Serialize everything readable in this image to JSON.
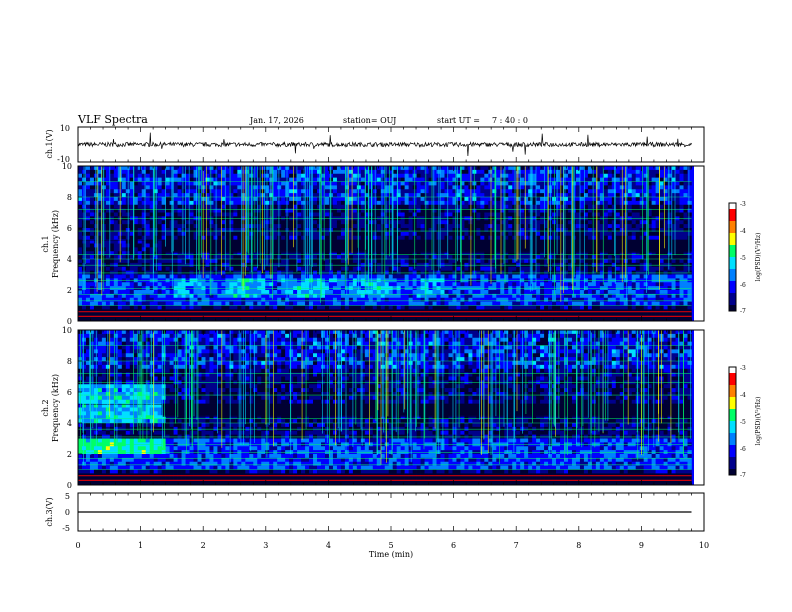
{
  "header": {
    "title": "VLF Spectra",
    "date": "Jan. 17, 2026",
    "station": "station= OUJ",
    "start_label": "start UT =",
    "start_time": "7 : 40 : 0"
  },
  "colors": {
    "spectrogram_scale": [
      "#000033",
      "#00008b",
      "#0000ff",
      "#0080ff",
      "#00e0ff",
      "#00ff66",
      "#ffff00",
      "#ff8000",
      "#ff0000",
      "#ffffff"
    ],
    "trace": "#000000"
  },
  "chart_data": [
    {
      "type": "line",
      "name": "ch1-waveform",
      "ylabel": "ch.1(V)",
      "ylim": [
        -10,
        10
      ],
      "y_ticks": [
        "10",
        "-10"
      ],
      "x_range": [
        0,
        10
      ],
      "baseline": 0,
      "data_end_min": 9.8
    },
    {
      "type": "heatmap",
      "name": "ch1-spectrogram",
      "ylabel": "ch.1\nFrequency (kHz)",
      "ylim": [
        0,
        10
      ],
      "y_ticks": [
        "10",
        "8",
        "6",
        "4",
        "2",
        "0"
      ],
      "x_range": [
        0,
        10
      ],
      "colorbar": {
        "label": "log(PSD)(V²/Hz)",
        "range": [
          -7,
          -3
        ],
        "ticks": [
          "-3",
          "-4",
          "-5",
          "-6",
          "-7"
        ]
      }
    },
    {
      "type": "heatmap",
      "name": "ch2-spectrogram",
      "ylabel": "ch.2\nFrequency (kHz)",
      "ylim": [
        0,
        10
      ],
      "y_ticks": [
        "10",
        "8",
        "6",
        "4",
        "2",
        "0"
      ],
      "x_range": [
        0,
        10
      ],
      "colorbar": {
        "label": "log(PSD)(V²/Hz)",
        "range": [
          -7,
          -3
        ],
        "ticks": [
          "-3",
          "-4",
          "-5",
          "-6",
          "-7"
        ]
      }
    },
    {
      "type": "line",
      "name": "ch3-waveform",
      "ylabel": "ch.3(V)",
      "ylim": [
        -5,
        5
      ],
      "y_ticks": [
        "5",
        "0",
        "-5"
      ],
      "x_range": [
        0,
        10
      ],
      "baseline": 0,
      "data_end_min": 9.8
    }
  ],
  "xaxis": {
    "label": "Time (min)",
    "ticks": [
      "0",
      "1",
      "2",
      "3",
      "4",
      "5",
      "6",
      "7",
      "8",
      "9",
      "10"
    ]
  }
}
